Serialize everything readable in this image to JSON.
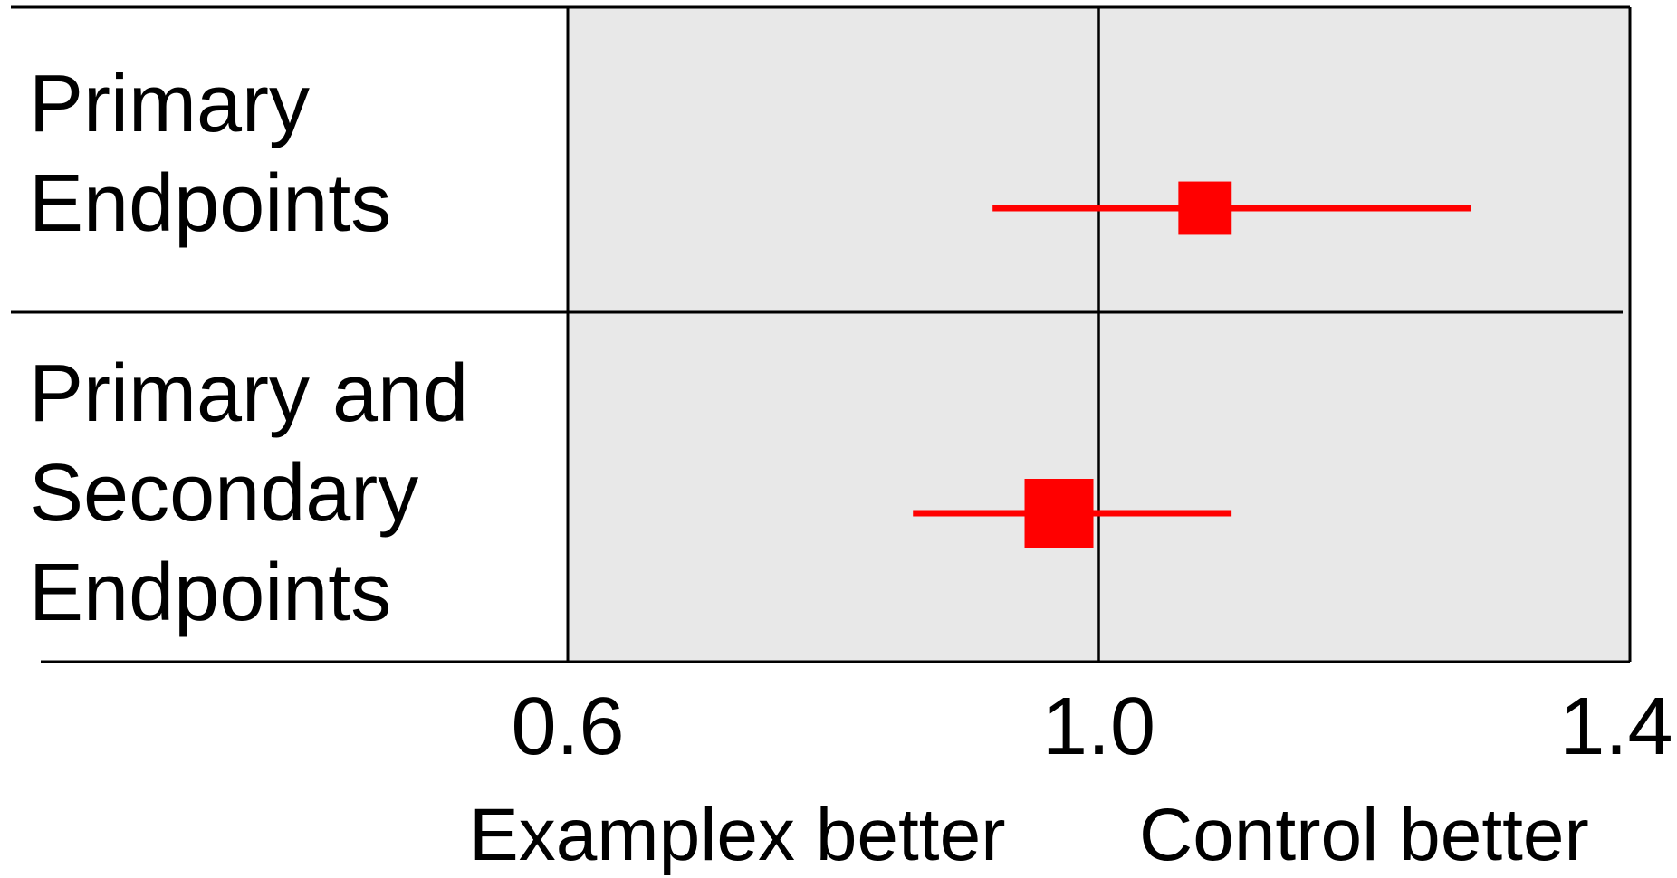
{
  "chart_data": {
    "type": "forest",
    "rows": [
      {
        "label": [
          "Primary",
          "Endpoints"
        ],
        "estimate": 1.08,
        "ci_low": 0.92,
        "ci_high": 1.28,
        "weight": 0.6
      },
      {
        "label": [
          "Primary and",
          "Secondary",
          "Endpoints"
        ],
        "estimate": 0.97,
        "ci_low": 0.86,
        "ci_high": 1.1,
        "weight": 1.0
      }
    ],
    "x_ticks": [
      "0.6",
      "1.0",
      "1.4"
    ],
    "xlim": [
      0.6,
      1.4
    ],
    "reference_line": 1.0,
    "direction_labels": {
      "left": "Examplex better",
      "right": "Control better"
    },
    "colors": {
      "marker": "#ff0000",
      "panel": "#e8e8e8"
    }
  }
}
